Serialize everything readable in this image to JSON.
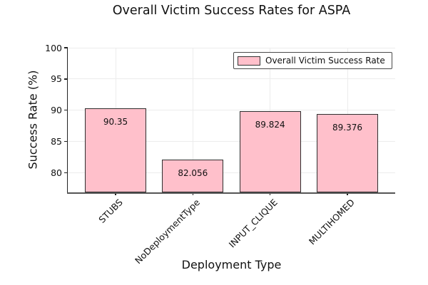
{
  "chart_data": {
    "type": "bar",
    "title": "Overall Victim Success Rates for ASPA",
    "xlabel": "Deployment Type",
    "ylabel": "Success Rate (%)",
    "categories": [
      "STUBS",
      "NoDeploymentType",
      "INPUT_CLIQUE",
      "MULTIHOMED"
    ],
    "values": [
      90.35,
      82.056,
      89.824,
      89.376
    ],
    "value_labels": [
      "90.35",
      "82.056",
      "89.824",
      "89.376"
    ],
    "yticks": [
      80,
      85,
      90,
      95,
      100
    ],
    "ylim": [
      76.85,
      100
    ],
    "grid": true,
    "legend": {
      "position": "upper-right",
      "entries": [
        {
          "label": "Overall Victim Success Rate",
          "color": "#ffc0cb"
        }
      ]
    },
    "colors": {
      "bar_fill": "#ffc0cb",
      "bar_edge": "#2f2f2f",
      "grid": "#ececec",
      "spine_left": "#222222",
      "spine_bottom": "#555555",
      "tick": "#222222",
      "text": "#111111",
      "background": "#ffffff"
    }
  }
}
